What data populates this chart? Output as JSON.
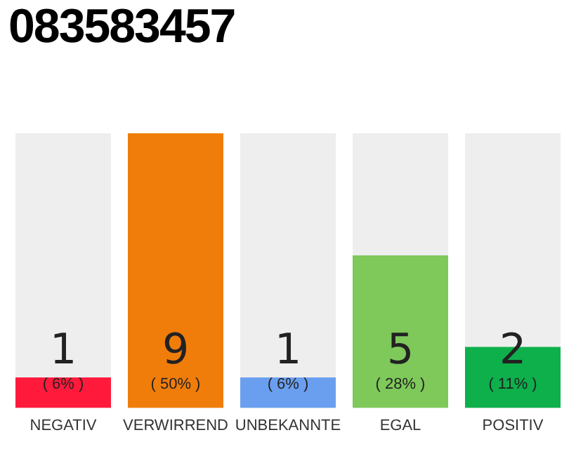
{
  "chart_data": {
    "type": "bar",
    "title": "083583457",
    "categories": [
      "NEGATIV",
      "VERWIRREND",
      "UNBEKANNTE",
      "EGAL",
      "POSITIV"
    ],
    "values": [
      1,
      9,
      1,
      5,
      2
    ],
    "colors": [
      "#ff1a3c",
      "#f07d0a",
      "#6a9ff0",
      "#7ec95a",
      "#0db04b"
    ],
    "ylim": [
      0,
      9
    ],
    "tick_labels": "x",
    "grid": false,
    "legend": false,
    "data_labels": true,
    "annotations": [
      "( 6% )",
      "( 50% )",
      "( 6% )",
      "( 28% )",
      "( 11% )"
    ]
  }
}
